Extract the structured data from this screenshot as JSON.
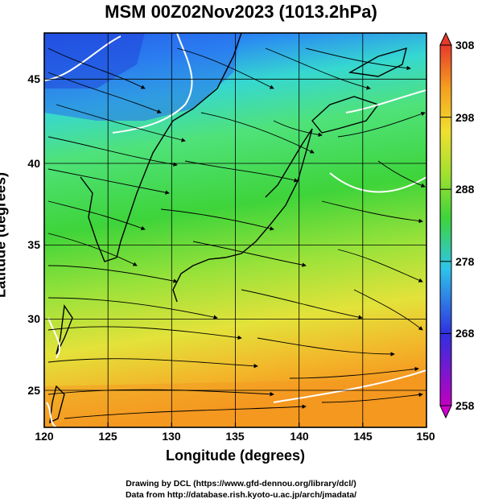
{
  "title": "MSM 00Z02Nov2023 (1013.2hPa)",
  "x_axis": {
    "label": "Longitude (degrees)",
    "ticks": [
      "120",
      "125",
      "130",
      "135",
      "140",
      "145",
      "150"
    ]
  },
  "y_axis": {
    "label": "Latitude  (degrees)",
    "ticks": [
      "45",
      "40",
      "35",
      "30",
      "25"
    ]
  },
  "colorbar": {
    "ticks": [
      "308",
      "298",
      "288",
      "278",
      "268",
      "258"
    ],
    "min": 258,
    "max": 308
  },
  "credits": {
    "line1": "Drawing by DCL (https://www.gfd-dennou.org/library/dcl/)",
    "line2": "Data from http://database.rish.kyoto-u.ac.jp/arch/jmadata/"
  },
  "chart_data": {
    "type": "heatmap",
    "title": "MSM 00Z02Nov2023 (1013.2hPa)",
    "xlabel": "Longitude (degrees)",
    "ylabel": "Latitude  (degrees)",
    "xlim": [
      120,
      150
    ],
    "ylim": [
      22.4,
      47.6
    ],
    "colorbar_range": [
      258,
      308
    ],
    "grid": true,
    "overlays": [
      "temperature field (color)",
      "wind streamlines with arrows",
      "coastlines",
      "white contours"
    ]
  },
  "colors": {
    "ocean_warm": "#f5a623",
    "mid": "#7ee047",
    "cold": "#2a5ee0",
    "land_lines": "#000000",
    "contour": "#ffffff"
  }
}
